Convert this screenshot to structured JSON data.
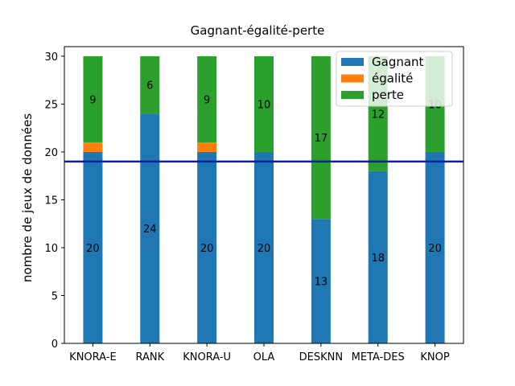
{
  "chart_data": {
    "type": "bar",
    "stacked": true,
    "title": "Gagnant-égalité-perte",
    "xlabel": "",
    "ylabel": "nombre de jeux de données",
    "ylim": [
      0,
      31
    ],
    "yticks": [
      "0",
      "5",
      "10",
      "15",
      "20",
      "25",
      "30"
    ],
    "categories": [
      "KNORA-E",
      "RANK",
      "KNORA-U",
      "OLA",
      "DESKNN",
      "META-DES",
      "KNOP"
    ],
    "series": [
      {
        "name": "Gagnant",
        "color": "#1f77b4",
        "values": [
          20,
          24,
          20,
          20,
          13,
          18,
          20
        ],
        "labels": [
          "20",
          "24",
          "20",
          "20",
          "13",
          "18",
          "20"
        ]
      },
      {
        "name": "égalité",
        "color": "#ff7f0e",
        "values": [
          1,
          0,
          1,
          0,
          0,
          0,
          0
        ],
        "labels": [
          "",
          "",
          "",
          "",
          "",
          "",
          ""
        ]
      },
      {
        "name": "perte",
        "color": "#2ca02c",
        "values": [
          9,
          6,
          9,
          10,
          17,
          12,
          10
        ],
        "labels": [
          "9",
          "6",
          "9",
          "10",
          "17",
          "12",
          "10"
        ]
      }
    ],
    "reference_line": {
      "y": 19,
      "color": "#0b1fa6"
    },
    "legend_position": "top-right",
    "grid": false
  }
}
